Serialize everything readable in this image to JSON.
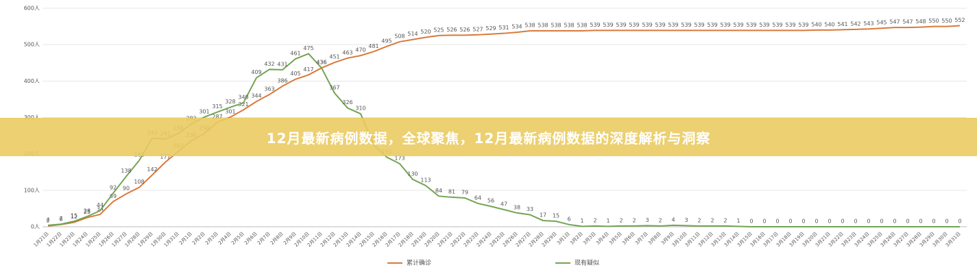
{
  "chart_data": {
    "type": "line",
    "categories": [
      "1月21日",
      "1月22日",
      "1月23日",
      "1月24日",
      "1月25日",
      "1月26日",
      "1月27日",
      "1月28日",
      "1月29日",
      "1月30日",
      "1月31日",
      "2月1日",
      "2月2日",
      "2月3日",
      "2月4日",
      "2月5日",
      "2月6日",
      "2月7日",
      "2月8日",
      "2月9日",
      "2月10日",
      "2月11日",
      "2月12日",
      "2月13日",
      "2月14日",
      "2月15日",
      "2月16日",
      "2月17日",
      "2月18日",
      "2月19日",
      "2月20日",
      "2月21日",
      "2月22日",
      "2月23日",
      "2月24日",
      "2月25日",
      "2月26日",
      "2月27日",
      "2月28日",
      "2月29日",
      "3月1日",
      "3月2日",
      "3月3日",
      "3月4日",
      "3月5日",
      "3月6日",
      "3月7日",
      "3月8日",
      "3月9日",
      "3月10日",
      "3月11日",
      "3月12日",
      "3月13日",
      "3月14日",
      "3月15日",
      "3月16日",
      "3月17日",
      "3月18日",
      "3月19日",
      "3月20日",
      "3月21日",
      "3月22日",
      "3月23日",
      "3月24日",
      "3月25日",
      "3月26日",
      "3月27日",
      "3月28日",
      "3月29日",
      "3月30日",
      "3月31日"
    ],
    "series": [
      {
        "name": "累计确诊",
        "color": "#d9793a",
        "values": [
          2,
          6,
          12,
          25,
          34,
          69,
          90,
          108,
          142,
          177,
          207,
          236,
          256,
          287,
          301,
          321,
          344,
          363,
          386,
          405,
          417,
          436,
          451,
          463,
          470,
          481,
          495,
          508,
          514,
          520,
          525,
          526,
          526,
          527,
          529,
          531,
          534,
          538,
          538,
          538,
          538,
          538,
          539,
          539,
          539,
          539,
          539,
          539,
          539,
          539,
          539,
          539,
          539,
          539,
          539,
          539,
          539,
          539,
          539,
          540,
          540,
          541,
          542,
          543,
          545,
          547,
          547,
          548,
          550,
          550,
          552
        ]
      },
      {
        "name": "现有疑似",
        "color": "#72a452",
        "values": [
          4,
          7,
          15,
          28,
          44,
          92,
          138,
          182,
          243,
          241,
          256,
          282,
          301,
          315,
          328,
          340,
          409,
          432,
          431,
          461,
          475,
          436,
          367,
          326,
          310,
          225,
          191,
          173,
          130,
          113,
          84,
          81,
          79,
          64,
          56,
          47,
          38,
          33,
          17,
          15,
          6,
          1,
          2,
          1,
          2,
          2,
          3,
          2,
          4,
          3,
          2,
          2,
          2,
          1,
          0,
          0,
          0,
          0,
          0,
          0,
          0,
          0,
          0,
          0,
          0,
          0,
          0,
          0,
          0,
          0,
          0
        ]
      }
    ],
    "ylim": [
      0,
      600
    ],
    "yticks": [
      {
        "value": 0,
        "label": "0人"
      },
      {
        "value": 100,
        "label": "100人"
      },
      {
        "value": 200,
        "label": "200人"
      },
      {
        "value": 300,
        "label": "300人"
      },
      {
        "value": 400,
        "label": "400人"
      },
      {
        "value": 500,
        "label": "500人"
      },
      {
        "value": 600,
        "label": "600人"
      }
    ],
    "grid": true
  },
  "banner": {
    "title": "12月最新病例数据，全球聚焦，12月最新病例数据的深度解析与洞察"
  }
}
